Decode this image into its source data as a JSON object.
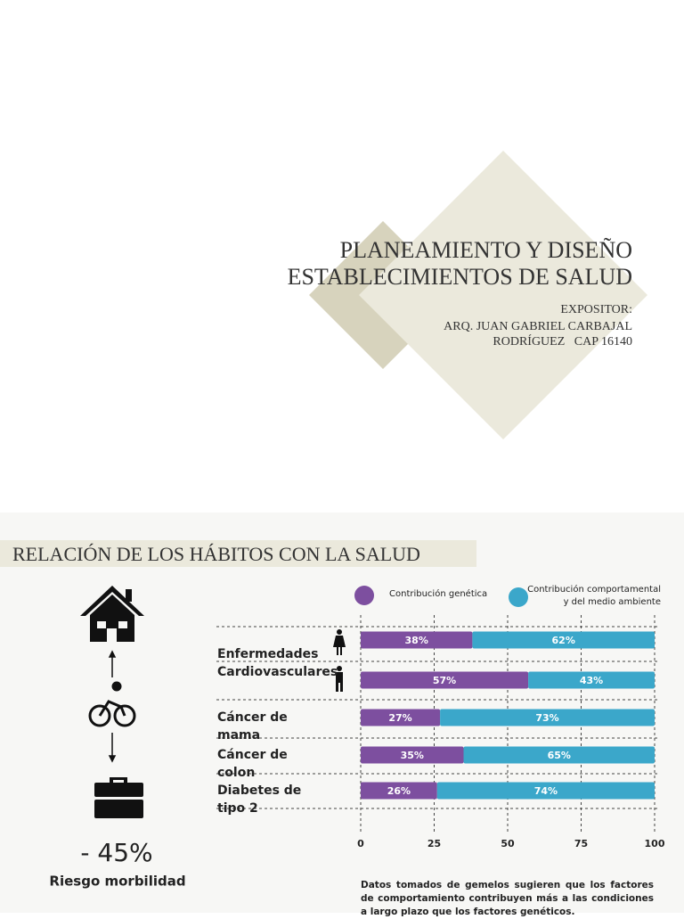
{
  "title_slide": {
    "title_lines": [
      "PLANEAMIENTO Y DISEÑO",
      "ESTABLECIMIENTOS DE SALUD"
    ],
    "presenter_lines": [
      "EXPOSITOR:",
      "ARQ. JUAN GABRIEL CARBAJAL",
      "RODRÍGUEZ   CAP 16140"
    ]
  },
  "slide2": {
    "title": "RELACIÓN DE LOS HÁBITOS CON LA SALUD",
    "stat": "- 45%",
    "stat_label": "Riesgo morbilidad",
    "note": "Datos tomados de gemelos sugieren que los factores de comportamiento contribuyen más a las condiciones a largo plazo que los factores genéticos."
  },
  "chart_data": {
    "type": "stacked_bar_horizontal",
    "categories": [
      "Enfermedades Cardiovasculares",
      null,
      "Cáncer de mama",
      "Cáncer de colon",
      "Diabetes de tipo 2"
    ],
    "series": [
      {
        "name": "Contribución genética",
        "color": "#7d4f9f",
        "values": [
          38,
          57,
          27,
          35,
          26
        ],
        "value_labels": [
          "38%",
          "57%",
          "27%",
          "35%",
          "26%"
        ]
      },
      {
        "name": "Contribución comportamental y del medio ambiente",
        "color": "#3ba7ca",
        "values": [
          62,
          43,
          73,
          65,
          74
        ],
        "value_labels": [
          "62%",
          "43%",
          "73%",
          "65%",
          "74%"
        ]
      }
    ],
    "xlim": [
      0,
      100
    ],
    "xticks": [
      0,
      25,
      50,
      75,
      100
    ],
    "grid": true
  }
}
